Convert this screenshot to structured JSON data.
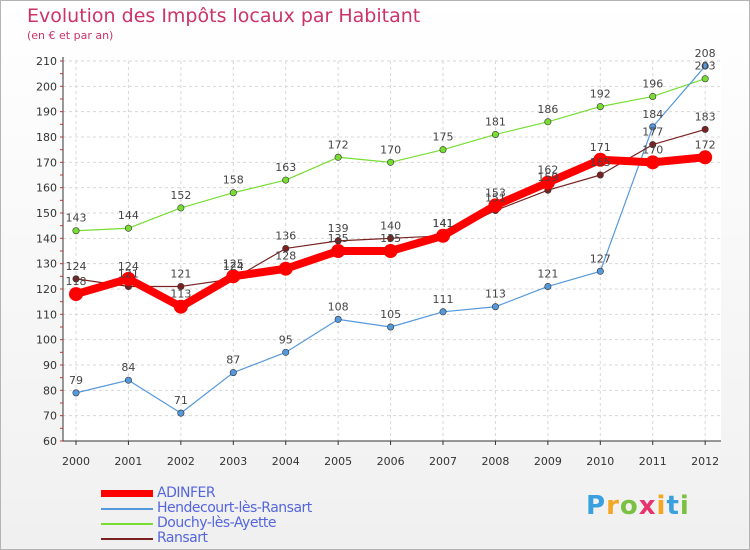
{
  "header": {
    "title": "Evolution des Impôts locaux par Habitant",
    "subtitle": "(en € et par an)"
  },
  "logo": {
    "text": "Proxiti",
    "letters": [
      "P",
      "r",
      "o",
      "x",
      "i",
      "t",
      "i"
    ],
    "colors": [
      "#3aa0e0",
      "#f5a623",
      "#7ac143",
      "#e8336f",
      "#f5a623",
      "#3aa0e0",
      "#7ac143"
    ]
  },
  "chart_data": {
    "type": "line",
    "categories": [
      "2000",
      "2001",
      "2002",
      "2003",
      "2004",
      "2005",
      "2006",
      "2007",
      "2008",
      "2009",
      "2010",
      "2011",
      "2012"
    ],
    "ylim": [
      60,
      210
    ],
    "yticks": [
      60,
      70,
      80,
      90,
      100,
      110,
      120,
      130,
      140,
      150,
      160,
      170,
      180,
      190,
      200,
      210
    ],
    "grid": true,
    "legend_position": "bottom-left",
    "series": [
      {
        "name": "ADINFER",
        "color": "#ff0000",
        "values": [
          118,
          124,
          113,
          125,
          128,
          135,
          135,
          141,
          153,
          162,
          171,
          170,
          172
        ],
        "labels": [
          "118",
          "124",
          "113",
          "125",
          "128",
          "135",
          "135",
          "141",
          "153",
          "162",
          "171",
          "170",
          "172"
        ]
      },
      {
        "name": "Hendecourt-lès-Ransart",
        "color": "#5599dd",
        "values": [
          79,
          84,
          71,
          87,
          95,
          108,
          105,
          111,
          113,
          121,
          127,
          184,
          208
        ],
        "labels": [
          "79",
          "84",
          "71",
          "87",
          "95",
          "108",
          "105",
          "111",
          "113",
          "121",
          "127",
          "184",
          "208"
        ]
      },
      {
        "name": "Douchy-lès-Ayette",
        "color": "#77dd33",
        "values": [
          143,
          144,
          152,
          158,
          163,
          172,
          170,
          175,
          181,
          186,
          192,
          196,
          203
        ],
        "labels": [
          "143",
          "144",
          "152",
          "158",
          "163",
          "172",
          "170",
          "175",
          "181",
          "186",
          "192",
          "196",
          "203"
        ]
      },
      {
        "name": "Ransart",
        "color": "#7a2222",
        "values": [
          124,
          121,
          121,
          124,
          136,
          139,
          140,
          141,
          151,
          159,
          165,
          177,
          183
        ],
        "labels": [
          "124",
          "121",
          "121",
          "124",
          "136",
          "139",
          "140",
          "141",
          "151",
          "159",
          "165",
          "177",
          "183"
        ]
      }
    ]
  }
}
